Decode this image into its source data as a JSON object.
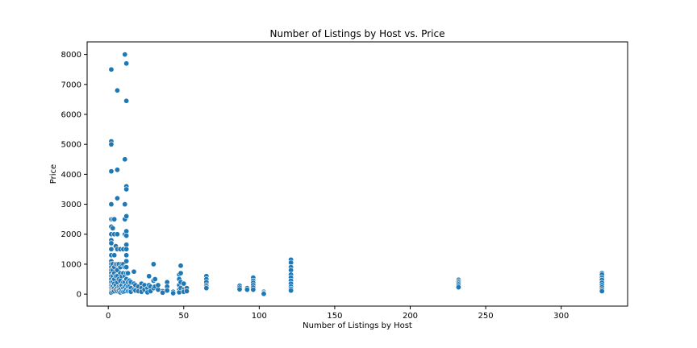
{
  "chart_data": {
    "type": "scatter",
    "title": "Number of Listings by Host vs. Price",
    "xlabel": "Number of Listings by Host",
    "ylabel": "Price",
    "xlim": [
      -14,
      344
    ],
    "ylim": [
      -400,
      8420
    ],
    "xticks": [
      0,
      50,
      100,
      150,
      200,
      250,
      300
    ],
    "yticks": [
      0,
      1000,
      2000,
      3000,
      4000,
      5000,
      6000,
      7000,
      8000
    ],
    "grid": false,
    "legend": "none",
    "point_color": "#1f77b4",
    "points": [
      [
        2,
        7500
      ],
      [
        2,
        5100
      ],
      [
        2,
        5000
      ],
      [
        2,
        4100
      ],
      [
        2,
        3000
      ],
      [
        2,
        2500
      ],
      [
        2,
        2250
      ],
      [
        2,
        2000
      ],
      [
        2,
        1800
      ],
      [
        2,
        1700
      ],
      [
        2,
        1500
      ],
      [
        2,
        1300
      ],
      [
        2,
        1100
      ],
      [
        2,
        1000
      ],
      [
        2,
        900
      ],
      [
        2,
        800
      ],
      [
        2,
        700
      ],
      [
        2,
        600
      ],
      [
        2,
        500
      ],
      [
        2,
        400
      ],
      [
        2,
        300
      ],
      [
        2,
        250
      ],
      [
        2,
        200
      ],
      [
        2,
        150
      ],
      [
        2,
        100
      ],
      [
        2,
        50
      ],
      [
        3,
        2500
      ],
      [
        3,
        2200
      ],
      [
        3,
        1000
      ],
      [
        3,
        800
      ],
      [
        3,
        600
      ],
      [
        3,
        400
      ],
      [
        3,
        250
      ],
      [
        3,
        150
      ],
      [
        3,
        80
      ],
      [
        4,
        2500
      ],
      [
        4,
        2000
      ],
      [
        4,
        1300
      ],
      [
        4,
        900
      ],
      [
        4,
        700
      ],
      [
        4,
        500
      ],
      [
        4,
        350
      ],
      [
        4,
        200
      ],
      [
        4,
        100
      ],
      [
        5,
        1600
      ],
      [
        5,
        1000
      ],
      [
        5,
        600
      ],
      [
        5,
        300
      ],
      [
        5,
        150
      ],
      [
        6,
        6800
      ],
      [
        6,
        4150
      ],
      [
        6,
        3200
      ],
      [
        6,
        2000
      ],
      [
        6,
        1500
      ],
      [
        6,
        1000
      ],
      [
        6,
        800
      ],
      [
        6,
        600
      ],
      [
        6,
        400
      ],
      [
        6,
        200
      ],
      [
        6,
        100
      ],
      [
        7,
        1000
      ],
      [
        7,
        500
      ],
      [
        7,
        250
      ],
      [
        7,
        120
      ],
      [
        8,
        1500
      ],
      [
        8,
        900
      ],
      [
        8,
        700
      ],
      [
        8,
        450
      ],
      [
        8,
        250
      ],
      [
        8,
        150
      ],
      [
        8,
        60
      ],
      [
        9,
        1000
      ],
      [
        9,
        600
      ],
      [
        9,
        300
      ],
      [
        9,
        100
      ],
      [
        10,
        1500
      ],
      [
        10,
        1000
      ],
      [
        10,
        700
      ],
      [
        10,
        400
      ],
      [
        10,
        200
      ],
      [
        10,
        80
      ],
      [
        11,
        8000
      ],
      [
        11,
        4500
      ],
      [
        11,
        3000
      ],
      [
        11,
        2500
      ],
      [
        11,
        2000
      ],
      [
        11,
        900
      ],
      [
        11,
        600
      ],
      [
        11,
        400
      ],
      [
        11,
        250
      ],
      [
        11,
        100
      ],
      [
        12,
        7700
      ],
      [
        12,
        6450
      ],
      [
        12,
        3600
      ],
      [
        12,
        3500
      ],
      [
        12,
        2600
      ],
      [
        12,
        2100
      ],
      [
        12,
        1950
      ],
      [
        12,
        1650
      ],
      [
        12,
        1500
      ],
      [
        12,
        1300
      ],
      [
        12,
        1100
      ],
      [
        12,
        900
      ],
      [
        12,
        700
      ],
      [
        12,
        500
      ],
      [
        12,
        300
      ],
      [
        12,
        150
      ],
      [
        13,
        700
      ],
      [
        13,
        400
      ],
      [
        13,
        250
      ],
      [
        13,
        100
      ],
      [
        14,
        450
      ],
      [
        14,
        250
      ],
      [
        14,
        100
      ],
      [
        15,
        400
      ],
      [
        15,
        200
      ],
      [
        15,
        80
      ],
      [
        17,
        750
      ],
      [
        17,
        350
      ],
      [
        17,
        150
      ],
      [
        18,
        300
      ],
      [
        18,
        120
      ],
      [
        20,
        250
      ],
      [
        20,
        100
      ],
      [
        22,
        350
      ],
      [
        22,
        200
      ],
      [
        22,
        80
      ],
      [
        24,
        300
      ],
      [
        24,
        150
      ],
      [
        26,
        200
      ],
      [
        26,
        60
      ],
      [
        27,
        600
      ],
      [
        27,
        300
      ],
      [
        28,
        250
      ],
      [
        28,
        100
      ],
      [
        30,
        1000
      ],
      [
        30,
        450
      ],
      [
        30,
        200
      ],
      [
        31,
        500
      ],
      [
        31,
        250
      ],
      [
        33,
        150
      ],
      [
        33,
        300
      ],
      [
        36,
        100
      ],
      [
        36,
        50
      ],
      [
        39,
        400
      ],
      [
        39,
        250
      ],
      [
        39,
        120
      ],
      [
        43,
        80
      ],
      [
        43,
        30
      ],
      [
        47,
        650
      ],
      [
        47,
        500
      ],
      [
        47,
        300
      ],
      [
        47,
        150
      ],
      [
        47,
        60
      ],
      [
        48,
        950
      ],
      [
        48,
        700
      ],
      [
        48,
        400
      ],
      [
        48,
        200
      ],
      [
        50,
        350
      ],
      [
        50,
        150
      ],
      [
        50,
        80
      ],
      [
        52,
        200
      ],
      [
        52,
        100
      ],
      [
        65,
        600
      ],
      [
        65,
        500
      ],
      [
        65,
        400
      ],
      [
        65,
        300
      ],
      [
        65,
        250
      ],
      [
        65,
        200
      ],
      [
        87,
        280
      ],
      [
        87,
        220
      ],
      [
        87,
        160
      ],
      [
        92,
        200
      ],
      [
        92,
        150
      ],
      [
        96,
        550
      ],
      [
        96,
        450
      ],
      [
        96,
        380
      ],
      [
        96,
        300
      ],
      [
        96,
        220
      ],
      [
        96,
        150
      ],
      [
        103,
        80
      ],
      [
        103,
        40
      ],
      [
        103,
        10
      ],
      [
        121,
        1150
      ],
      [
        121,
        1050
      ],
      [
        121,
        900
      ],
      [
        121,
        800
      ],
      [
        121,
        650
      ],
      [
        121,
        550
      ],
      [
        121,
        450
      ],
      [
        121,
        350
      ],
      [
        121,
        250
      ],
      [
        121,
        180
      ],
      [
        121,
        120
      ],
      [
        232,
        480
      ],
      [
        232,
        430
      ],
      [
        232,
        380
      ],
      [
        232,
        330
      ],
      [
        232,
        280
      ],
      [
        232,
        230
      ],
      [
        327,
        700
      ],
      [
        327,
        650
      ],
      [
        327,
        550
      ],
      [
        327,
        480
      ],
      [
        327,
        380
      ],
      [
        327,
        300
      ],
      [
        327,
        230
      ],
      [
        327,
        160
      ],
      [
        327,
        100
      ]
    ]
  }
}
